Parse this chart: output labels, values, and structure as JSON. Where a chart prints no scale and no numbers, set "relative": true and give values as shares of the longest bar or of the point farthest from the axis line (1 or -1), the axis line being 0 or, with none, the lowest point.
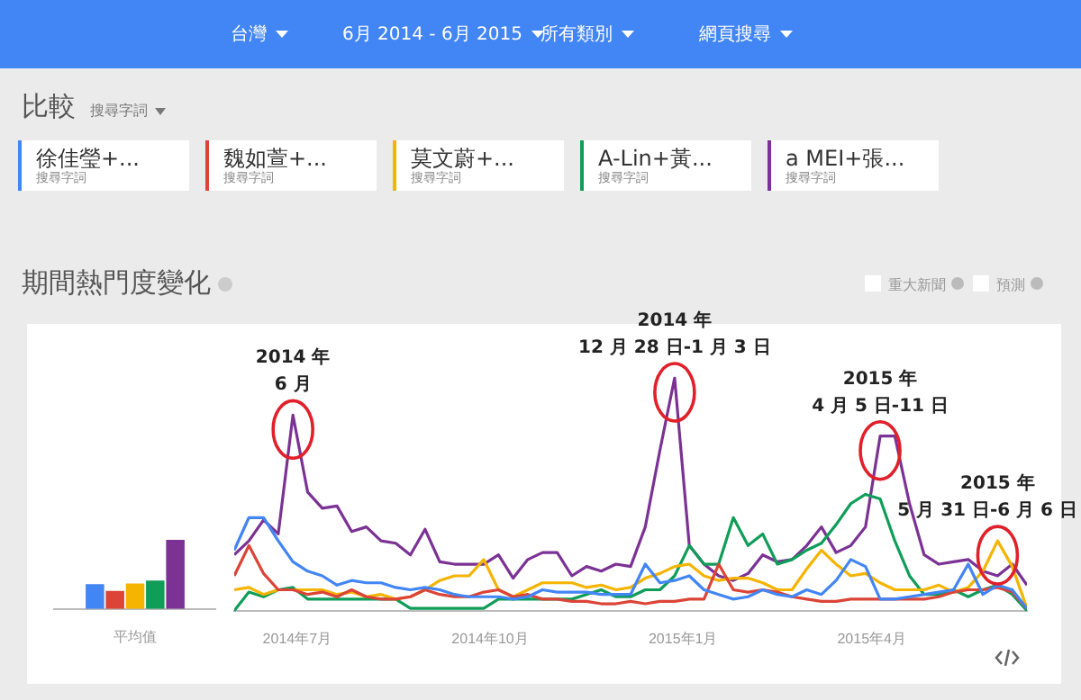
{
  "chart_data": [
    {
      "type": "other",
      "annotations": [
        "台灣",
        "6月 2014 - 6月 2015",
        "所有類別",
        "網頁搜尋",
        "比較",
        "搜尋字詞"
      ]
    },
    {
      "type": "bar",
      "relative": true,
      "categories": [
        "平均值"
      ],
      "series": [
        {
          "color": "#4285f4",
          "values": [
            0.36
          ]
        },
        {
          "color": "#db4437",
          "values": [
            0.26
          ]
        },
        {
          "color": "#f4b400",
          "values": [
            0.37
          ]
        },
        {
          "color": "#0f9d58",
          "values": [
            0.41
          ]
        },
        {
          "color": "#7b3294",
          "values": [
            1
          ]
        }
      ]
    },
    {
      "type": "line",
      "relative": true,
      "title": "期間熱門度變化",
      "legend": "top",
      "legend_title": "搜尋字詞",
      "x": [
        "2014-06-01",
        "2014-06-08",
        "2014-06-15",
        "2014-06-22",
        "2014-06-29",
        "2014-07-06",
        "2014-07-13",
        "2014-07-20",
        "2014-07-27",
        "2014-08-03",
        "2014-08-10",
        "2014-08-17",
        "2014-08-24",
        "2014-08-31",
        "2014-09-07",
        "2014-09-14",
        "2014-09-21",
        "2014-09-28",
        "2014-10-05",
        "2014-10-12",
        "2014-10-19",
        "2014-10-26",
        "2014-11-02",
        "2014-11-09",
        "2014-11-16",
        "2014-11-23",
        "2014-11-30",
        "2014-12-07",
        "2014-12-14",
        "2014-12-21",
        "2014-12-28",
        "2015-01-04",
        "2015-01-11",
        "2015-01-18",
        "2015-01-25",
        "2015-02-01",
        "2015-02-08",
        "2015-02-15",
        "2015-02-22",
        "2015-03-01",
        "2015-03-08",
        "2015-03-15",
        "2015-03-22",
        "2015-03-29",
        "2015-04-05",
        "2015-04-12",
        "2015-04-19",
        "2015-04-26",
        "2015-05-03",
        "2015-05-10",
        "2015-05-17",
        "2015-05-24",
        "2015-05-31",
        "2015-06-07",
        "2015-06-14"
      ],
      "xlim": [
        "2014-06-01",
        "2015-06-14"
      ],
      "xticks": [
        {
          "value": "2014-07-01",
          "label": "2014年7月"
        },
        {
          "value": "2014-10-01",
          "label": "2014年10月"
        },
        {
          "value": "2015-01-01",
          "label": "2015年1月"
        },
        {
          "value": "2015-04-01",
          "label": "2015年4月"
        }
      ],
      "marker": "none",
      "line_style": "solid",
      "series": [
        {
          "name": "徐佳瑩+...",
          "color": "#4285f4",
          "values": [
            0.26,
            0.4,
            0.4,
            0.3,
            0.21,
            0.17,
            0.15,
            0.11,
            0.13,
            0.12,
            0.12,
            0.1,
            0.09,
            0.1,
            0.09,
            0.07,
            0.06,
            0.06,
            0.06,
            0.05,
            0.06,
            0.09,
            0.08,
            0.08,
            0.08,
            0.07,
            0.07,
            0.07,
            0.2,
            0.12,
            0.13,
            0.15,
            0.09,
            0.07,
            0.05,
            0.06,
            0.09,
            0.07,
            0.06,
            0.09,
            0.07,
            0.13,
            0.22,
            0.19,
            0.05,
            0.05,
            0.06,
            0.07,
            0.08,
            0.09,
            0.2,
            0.07,
            0.11,
            0.09,
            0.01
          ]
        },
        {
          "name": "魏如萱+...",
          "color": "#db4437",
          "values": [
            0.15,
            0.28,
            0.16,
            0.09,
            0.09,
            0.07,
            0.08,
            0.06,
            0.09,
            0.06,
            0.05,
            0.05,
            0.06,
            0.09,
            0.07,
            0.06,
            0.06,
            0.08,
            0.09,
            0.06,
            0.07,
            0.05,
            0.05,
            0.04,
            0.04,
            0.03,
            0.03,
            0.04,
            0.03,
            0.04,
            0.04,
            0.05,
            0.05,
            0.2,
            0.09,
            0.08,
            0.09,
            0.08,
            0.06,
            0.05,
            0.04,
            0.04,
            0.05,
            0.05,
            0.05,
            0.05,
            0.05,
            0.05,
            0.06,
            0.08,
            0.09,
            0.09,
            0.1,
            0.08,
            0.01
          ]
        },
        {
          "name": "莫文蔚+...",
          "color": "#f4b400",
          "values": [
            0.09,
            0.1,
            0.07,
            0.09,
            0.09,
            0.09,
            0.09,
            0.07,
            0.08,
            0.06,
            0.07,
            0.05,
            0.06,
            0.09,
            0.13,
            0.15,
            0.15,
            0.22,
            0.09,
            0.06,
            0.09,
            0.12,
            0.12,
            0.12,
            0.1,
            0.11,
            0.09,
            0.1,
            0.14,
            0.16,
            0.19,
            0.2,
            0.15,
            0.13,
            0.14,
            0.14,
            0.12,
            0.09,
            0.09,
            0.18,
            0.26,
            0.2,
            0.15,
            0.16,
            0.12,
            0.09,
            0.09,
            0.09,
            0.11,
            0.08,
            0.1,
            0.17,
            0.3,
            0.19,
            0.01
          ]
        },
        {
          "name": "A-Lin+黃...",
          "color": "#0f9d58",
          "values": [
            0,
            0.08,
            0.06,
            0.09,
            0.1,
            0.05,
            0.05,
            0.05,
            0.05,
            0.05,
            0.05,
            0.05,
            0.01,
            0.01,
            0.01,
            0.01,
            0.01,
            0.01,
            0.05,
            0.05,
            0.05,
            0.05,
            0.05,
            0.05,
            0.07,
            0.09,
            0.06,
            0.06,
            0.09,
            0.09,
            0.15,
            0.28,
            0.2,
            0.2,
            0.4,
            0.28,
            0.33,
            0.2,
            0.22,
            0.26,
            0.29,
            0.37,
            0.46,
            0.5,
            0.48,
            0.3,
            0.15,
            0.07,
            0.07,
            0.09,
            0.06,
            0.09,
            0.11,
            0.07,
            0
          ]
        },
        {
          "name": "a MEI+張...",
          "color": "#7b3294",
          "values": [
            0.24,
            0.3,
            0.39,
            0.33,
            0.84,
            0.51,
            0.44,
            0.45,
            0.34,
            0.36,
            0.3,
            0.29,
            0.24,
            0.35,
            0.21,
            0.2,
            0.2,
            0.2,
            0.24,
            0.14,
            0.22,
            0.25,
            0.25,
            0.15,
            0.19,
            0.17,
            0.2,
            0.19,
            0.36,
            0.69,
            1,
            0.28,
            0.2,
            0.15,
            0.13,
            0.16,
            0.24,
            0.21,
            0.22,
            0.28,
            0.36,
            0.25,
            0.28,
            0.36,
            0.75,
            0.75,
            0.46,
            0.24,
            0.2,
            0.21,
            0.22,
            0.17,
            0.15,
            0.2,
            0.11
          ]
        }
      ],
      "annotations": [
        {
          "text": "2014 年\n6 月",
          "x": "2014-06-29",
          "y": 0.84
        },
        {
          "text": "2014 年\n12 月 28 日-1 月 3 日",
          "x": "2014-12-28",
          "y": 1
        },
        {
          "text": "2015 年\n4 月 5 日-11 日",
          "x": "2015-04-05",
          "y": 0.75
        },
        {
          "text": "2015 年\n5 月 31 日-6 月 6 日",
          "x": "2015-05-31",
          "y": 0.3
        },
        "重大新聞",
        "預測"
      ]
    }
  ]
}
